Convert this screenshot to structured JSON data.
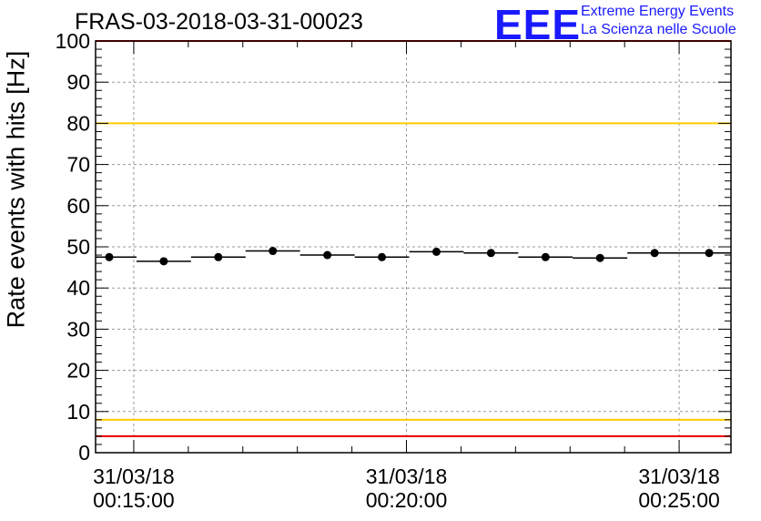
{
  "page": {
    "title": "FRAS-03-2018-03-31-00023",
    "logo": {
      "mark": "EEE",
      "line1": "Extreme Energy Events",
      "line2": "La Scienza nelle Scuole"
    }
  },
  "chart_data": {
    "type": "scatter",
    "title": "FRAS-03-2018-03-31-00023",
    "xlabel": "",
    "ylabel": "Rate events with hits [Hz]",
    "ylim": [
      0,
      100
    ],
    "xlim_minutes": [
      0,
      11.65
    ],
    "y_ticks": [
      "0",
      "10",
      "20",
      "30",
      "40",
      "50",
      "60",
      "70",
      "80",
      "90",
      "100"
    ],
    "x_ticks": [
      {
        "t": 0.7,
        "line1": "31/03/18",
        "line2": "00:15:00"
      },
      {
        "t": 5.7,
        "line1": "31/03/18",
        "line2": "00:20:00"
      },
      {
        "t": 10.7,
        "line1": "31/03/18",
        "line2": "00:25:00"
      }
    ],
    "bin_width_minutes": 1.0,
    "series": [
      {
        "name": "Rate",
        "x_minutes": [
          0.25,
          1.25,
          2.25,
          3.25,
          4.25,
          5.25,
          6.25,
          7.25,
          8.25,
          9.25,
          10.25,
          11.25
        ],
        "values": [
          47.5,
          46.5,
          47.5,
          49.0,
          48.0,
          47.5,
          48.8,
          48.5,
          47.5,
          47.3,
          48.5,
          48.5
        ]
      }
    ],
    "reference_lines": [
      {
        "name": "upper-limit",
        "value": 100,
        "color": "#ee0000"
      },
      {
        "name": "upper-warning",
        "value": 80,
        "color": "#ffcc00"
      },
      {
        "name": "lower-warning",
        "value": 8,
        "color": "#ffcc00"
      },
      {
        "name": "lower-limit",
        "value": 4,
        "color": "#ee0000"
      }
    ],
    "grid": true,
    "marker_color": "#000000"
  }
}
